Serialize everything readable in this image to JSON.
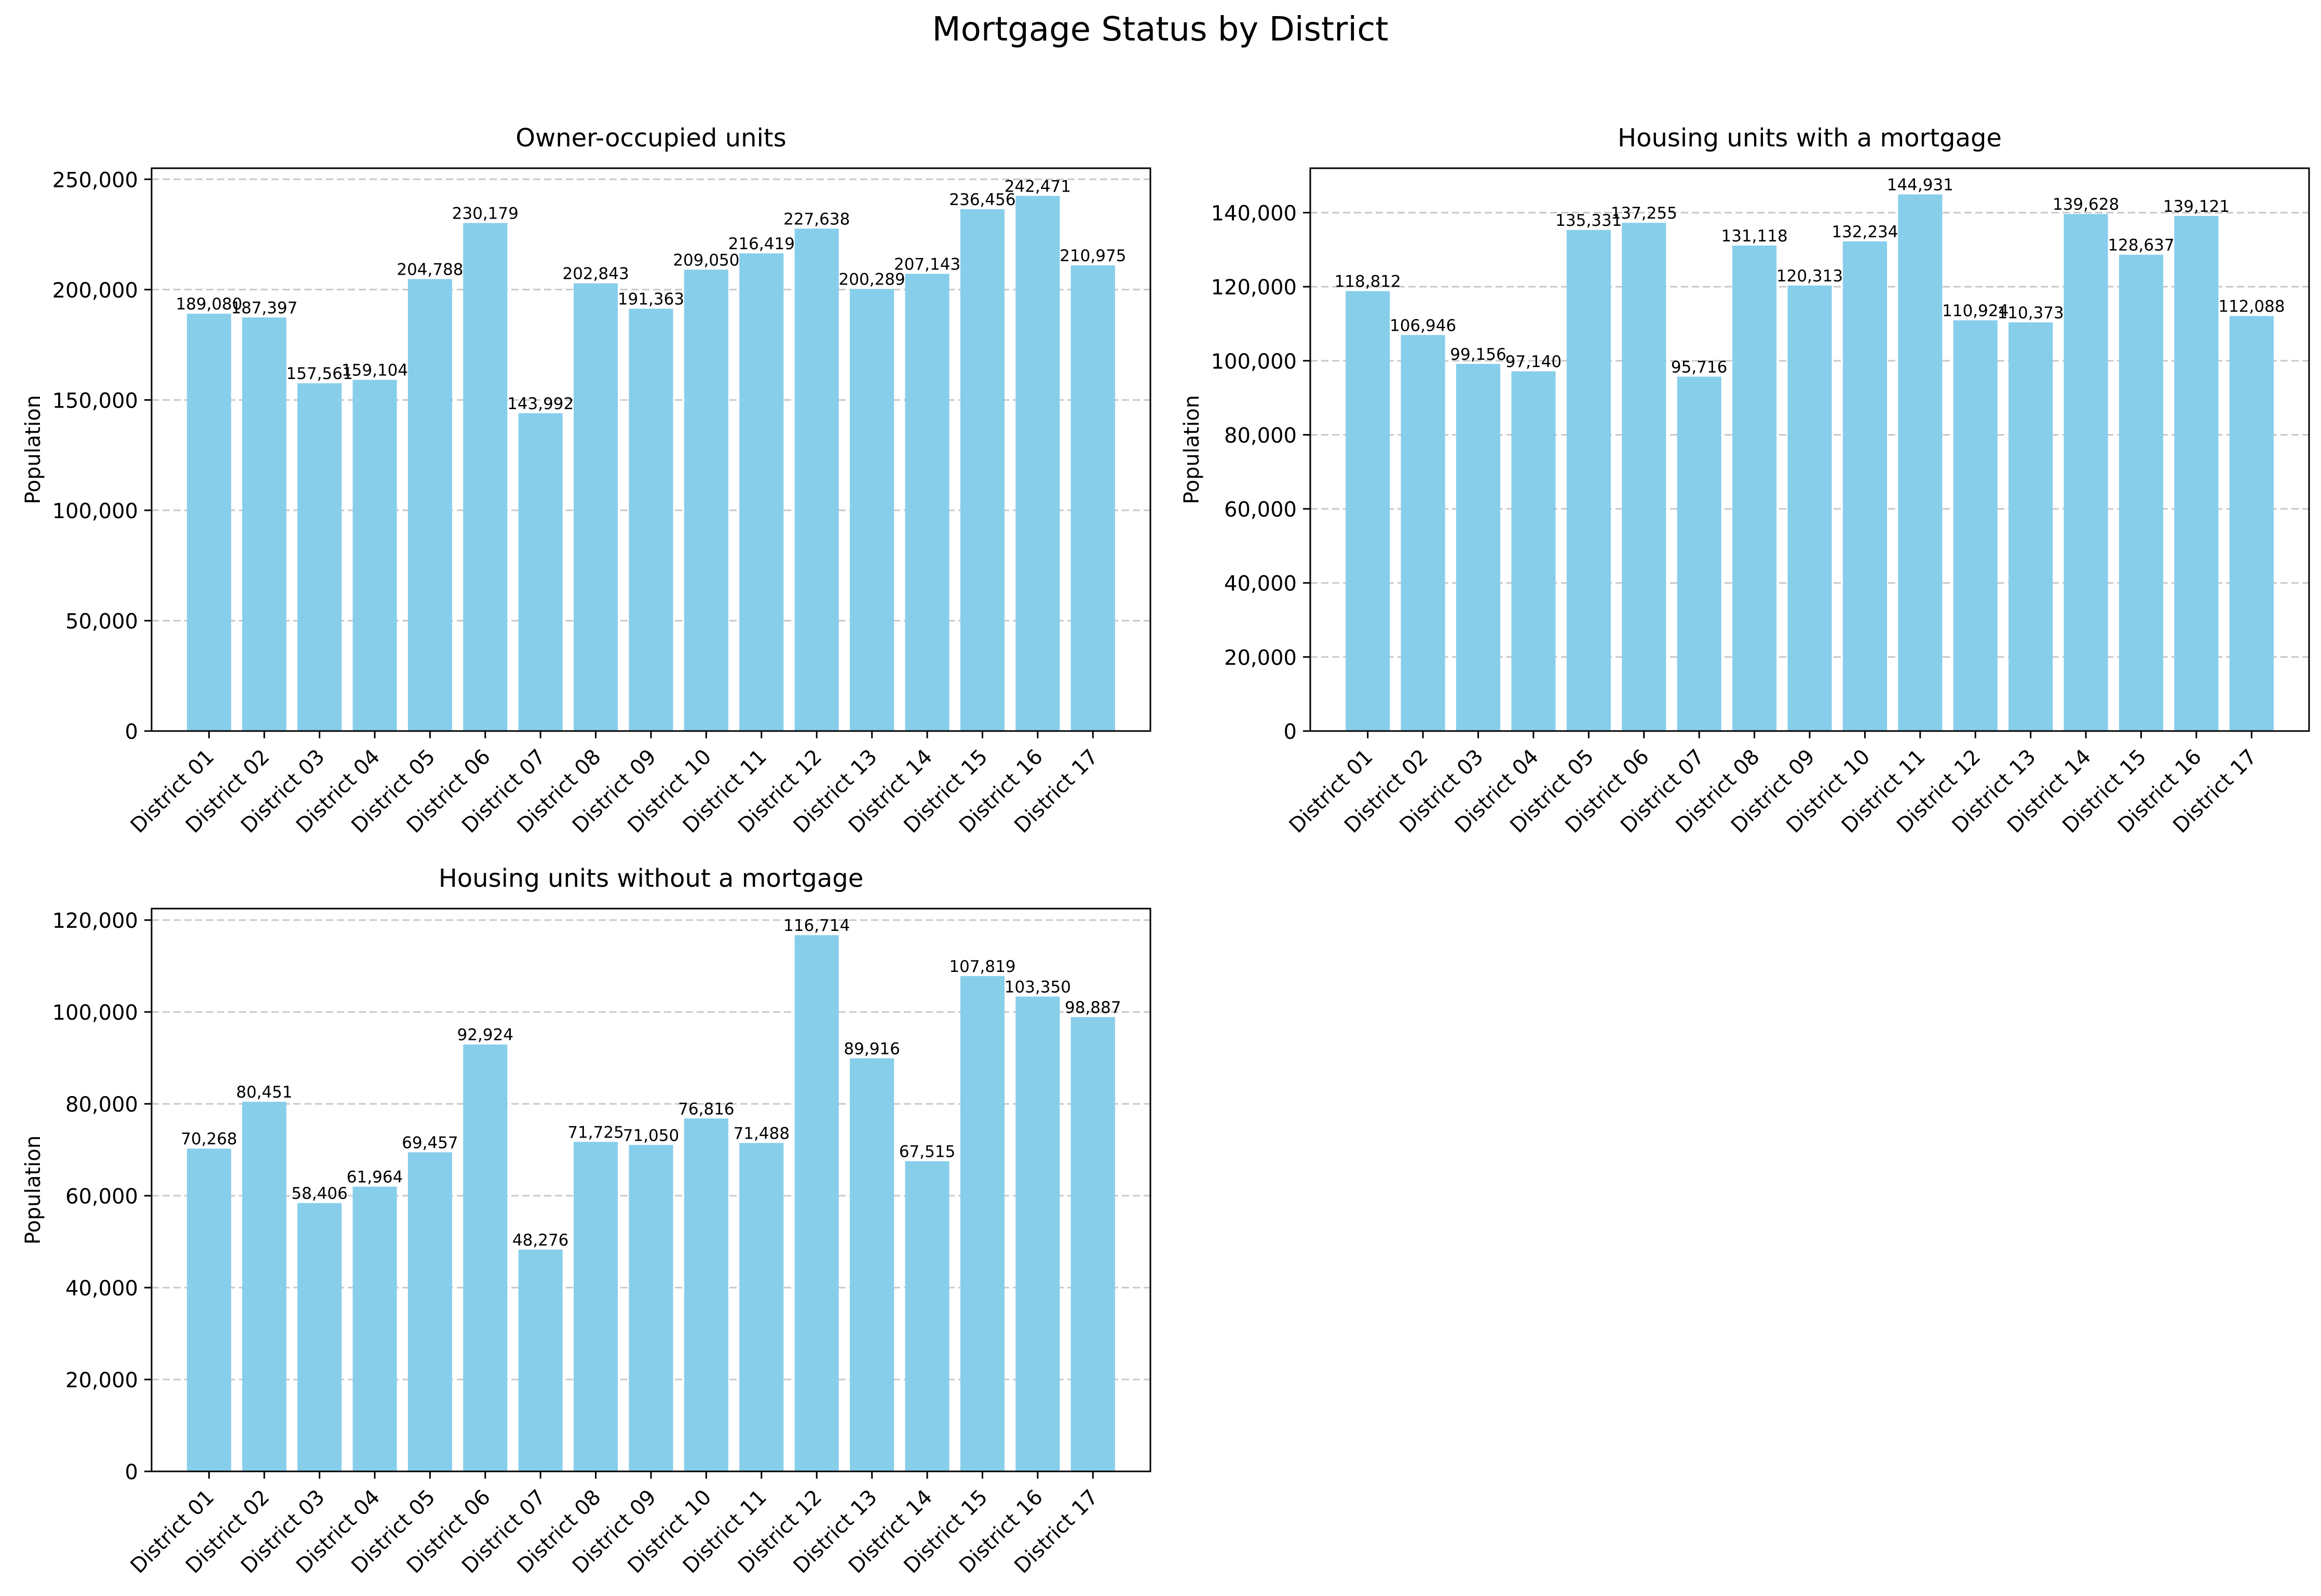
{
  "figure": {
    "suptitle": "Mortgage Status by District"
  },
  "style": {
    "bar_color": "#87ceeb",
    "grid_color": "#c8c8c8",
    "axis_color": "#000000"
  },
  "chart_data": [
    {
      "type": "bar",
      "title": "Owner-occupied units",
      "ylabel": "Population",
      "xlabel": "",
      "ylim": [
        0,
        255000
      ],
      "yticks": [
        0,
        50000,
        100000,
        150000,
        200000,
        250000
      ],
      "ytick_labels": [
        "0",
        "50,000",
        "100,000",
        "150,000",
        "200,000",
        "250,000"
      ],
      "grid": "y-dashed",
      "categories": [
        "District 01",
        "District 02",
        "District 03",
        "District 04",
        "District 05",
        "District 06",
        "District 07",
        "District 08",
        "District 09",
        "District 10",
        "District 11",
        "District 12",
        "District 13",
        "District 14",
        "District 15",
        "District 16",
        "District 17"
      ],
      "values": [
        189080,
        187397,
        157561,
        159104,
        204788,
        230179,
        143992,
        202843,
        191363,
        209050,
        216419,
        227638,
        200289,
        207143,
        236456,
        242471,
        210975
      ],
      "data_labels": [
        "189,080",
        "187,397",
        "157,561",
        "159,104",
        "204,788",
        "230,179",
        "143,992",
        "202,843",
        "191,363",
        "209,050",
        "216,419",
        "227,638",
        "200,289",
        "207,143",
        "236,456",
        "242,471",
        "210,975"
      ]
    },
    {
      "type": "bar",
      "title": "Housing units with a mortgage",
      "ylabel": "Population",
      "xlabel": "",
      "ylim": [
        0,
        152000
      ],
      "yticks": [
        0,
        20000,
        40000,
        60000,
        80000,
        100000,
        120000,
        140000
      ],
      "ytick_labels": [
        "0",
        "20,000",
        "40,000",
        "60,000",
        "80,000",
        "100,000",
        "120,000",
        "140,000"
      ],
      "grid": "y-dashed",
      "categories": [
        "District 01",
        "District 02",
        "District 03",
        "District 04",
        "District 05",
        "District 06",
        "District 07",
        "District 08",
        "District 09",
        "District 10",
        "District 11",
        "District 12",
        "District 13",
        "District 14",
        "District 15",
        "District 16",
        "District 17"
      ],
      "values": [
        118812,
        106946,
        99156,
        97140,
        135331,
        137255,
        95716,
        131118,
        120313,
        132234,
        144931,
        110924,
        110373,
        139628,
        128637,
        139121,
        112088
      ],
      "data_labels": [
        "118,812",
        "106,946",
        "99,156",
        "97,140",
        "135,331",
        "137,255",
        "95,716",
        "131,118",
        "120,313",
        "132,234",
        "144,931",
        "110,924",
        "110,373",
        "139,628",
        "128,637",
        "139,121",
        "112,088"
      ]
    },
    {
      "type": "bar",
      "title": "Housing units without a mortgage",
      "ylabel": "Population",
      "xlabel": "",
      "ylim": [
        0,
        122500
      ],
      "yticks": [
        0,
        20000,
        40000,
        60000,
        80000,
        100000,
        120000
      ],
      "ytick_labels": [
        "0",
        "20,000",
        "40,000",
        "60,000",
        "80,000",
        "100,000",
        "120,000"
      ],
      "grid": "y-dashed",
      "categories": [
        "District 01",
        "District 02",
        "District 03",
        "District 04",
        "District 05",
        "District 06",
        "District 07",
        "District 08",
        "District 09",
        "District 10",
        "District 11",
        "District 12",
        "District 13",
        "District 14",
        "District 15",
        "District 16",
        "District 17"
      ],
      "values": [
        70268,
        80451,
        58406,
        61964,
        69457,
        92924,
        48276,
        71725,
        71050,
        76816,
        71488,
        116714,
        89916,
        67515,
        107819,
        103350,
        98887
      ],
      "data_labels": [
        "70,268",
        "80,451",
        "58,406",
        "61,964",
        "69,457",
        "92,924",
        "48,276",
        "71,725",
        "71,050",
        "76,816",
        "71,488",
        "116,714",
        "89,916",
        "67,515",
        "107,819",
        "103,350",
        "98,887"
      ]
    }
  ]
}
